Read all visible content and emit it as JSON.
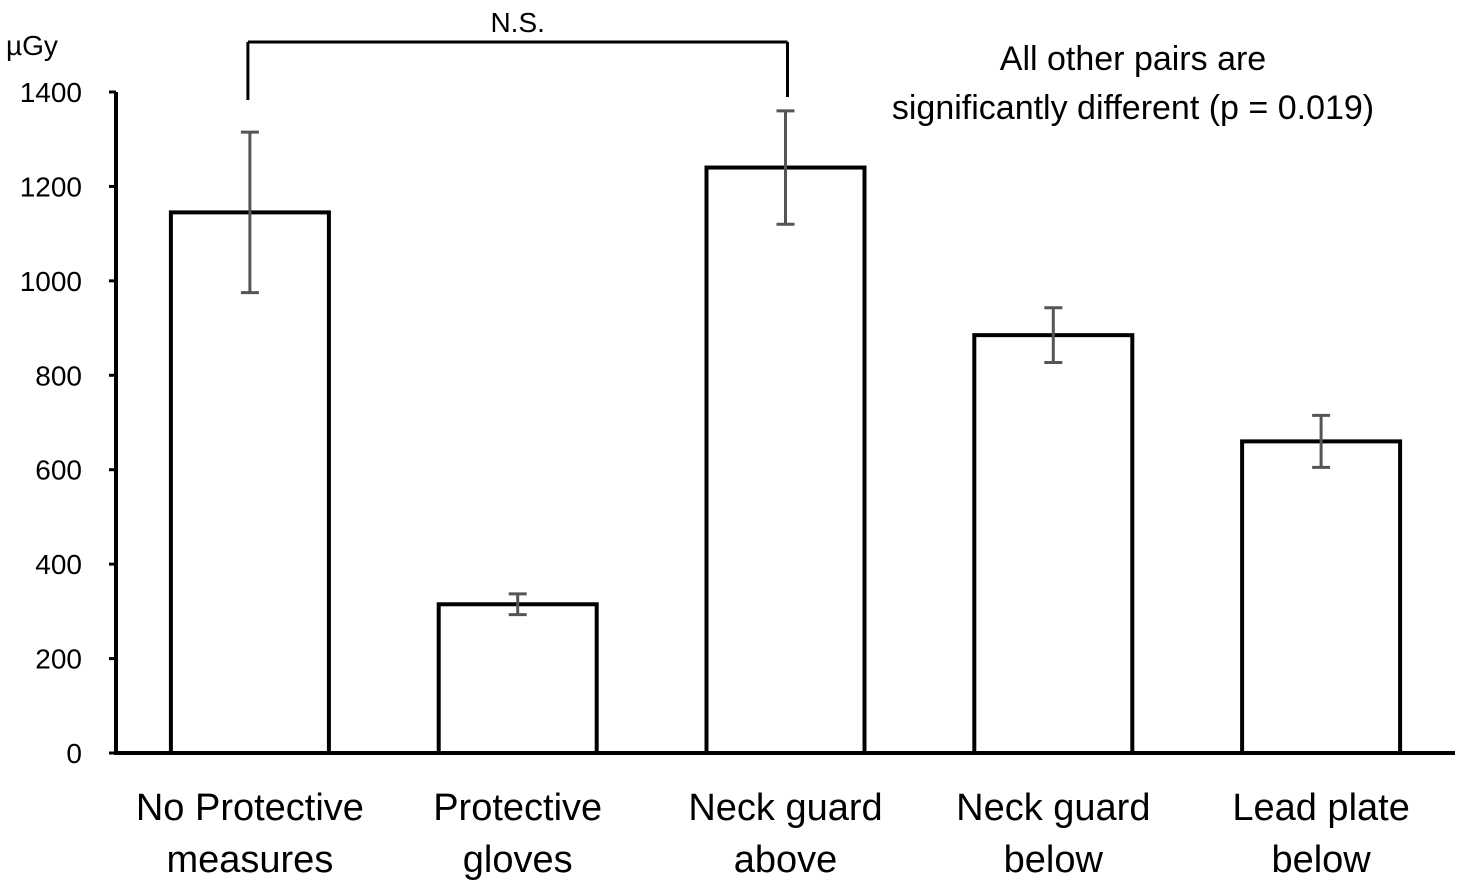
{
  "chart_data": {
    "type": "bar",
    "ylabel": "µGy",
    "ylim": [
      0,
      1400
    ],
    "yticks": [
      0,
      200,
      400,
      600,
      800,
      1000,
      1200,
      1400
    ],
    "categories": [
      [
        "No Protective",
        "measures"
      ],
      [
        "Protective",
        "gloves"
      ],
      [
        "Neck guard",
        "above"
      ],
      [
        "Neck guard",
        "below"
      ],
      [
        "Lead plate",
        "below"
      ]
    ],
    "values": [
      1145,
      315,
      1240,
      885,
      660
    ],
    "errors": [
      170,
      22,
      120,
      58,
      55
    ],
    "significance": {
      "pair": [
        0,
        2
      ],
      "label": "N.S."
    },
    "annotation": [
      "All other pairs are",
      "significantly different (p = 0.019)"
    ],
    "colors": {
      "bar_fill": "#ffffff",
      "bar_stroke": "#000000",
      "error_bar": "#555555"
    }
  }
}
